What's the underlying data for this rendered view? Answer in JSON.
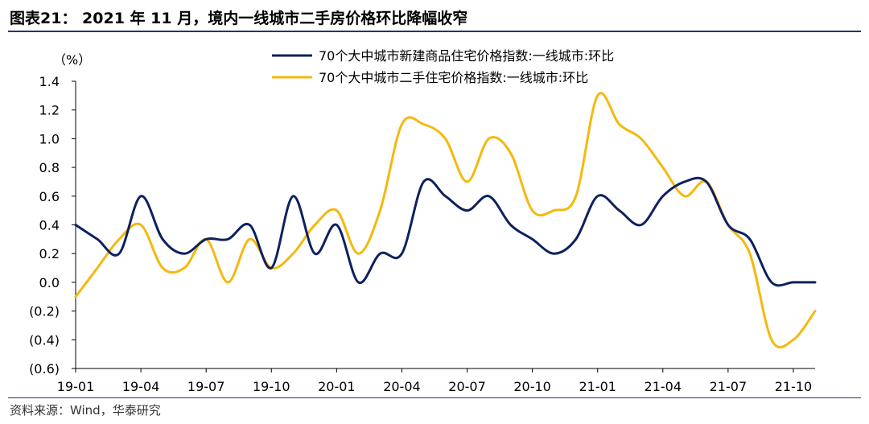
{
  "header": {
    "title": "图表21：  2021 年 11 月，境内一线城市二手房价格环比降幅收窄"
  },
  "footer": {
    "source": "资料来源：Wind，华泰研究"
  },
  "colors": {
    "series_new": "#0d2160",
    "series_second": "#f5b80f",
    "axis": "#000000",
    "rule": "#1a3a6b"
  },
  "chart_data": {
    "type": "line",
    "unit_label": "（%）",
    "ylim": [
      -0.6,
      1.4
    ],
    "yticks": [
      1.4,
      1.2,
      1.0,
      0.8,
      0.6,
      0.4,
      0.2,
      0.0,
      -0.2,
      -0.4,
      -0.6
    ],
    "ytick_labels": [
      "1.4",
      "1.2",
      "1.0",
      "0.8",
      "0.6",
      "0.4",
      "0.2",
      "0.0",
      "(0.2)",
      "(0.4)",
      "(0.6)"
    ],
    "xtick_labels": [
      "19-01",
      "19-04",
      "19-07",
      "19-10",
      "20-01",
      "20-04",
      "20-07",
      "20-10",
      "21-01",
      "21-04",
      "21-07",
      "21-10"
    ],
    "x": [
      "19-01",
      "19-02",
      "19-03",
      "19-04",
      "19-05",
      "19-06",
      "19-07",
      "19-08",
      "19-09",
      "19-10",
      "19-11",
      "19-12",
      "20-01",
      "20-02",
      "20-03",
      "20-04",
      "20-05",
      "20-06",
      "20-07",
      "20-08",
      "20-09",
      "20-10",
      "20-11",
      "20-12",
      "21-01",
      "21-02",
      "21-03",
      "21-04",
      "21-05",
      "21-06",
      "21-07",
      "21-08",
      "21-09",
      "21-10",
      "21-11"
    ],
    "grid": false,
    "legend_position": "top-center",
    "series": [
      {
        "name": "70个大中城市新建商品住宅价格指数:一线城市:环比",
        "values": [
          0.4,
          0.3,
          0.2,
          0.6,
          0.3,
          0.2,
          0.3,
          0.3,
          0.4,
          0.1,
          0.6,
          0.2,
          0.4,
          0.0,
          0.2,
          0.2,
          0.7,
          0.6,
          0.5,
          0.6,
          0.4,
          0.3,
          0.2,
          0.3,
          0.6,
          0.5,
          0.4,
          0.6,
          0.7,
          0.7,
          0.4,
          0.3,
          0.0,
          0.0,
          0.0
        ]
      },
      {
        "name": "70个大中城市二手住宅价格指数:一线城市:环比",
        "values": [
          -0.1,
          0.1,
          0.3,
          0.4,
          0.1,
          0.1,
          0.3,
          0.0,
          0.3,
          0.1,
          0.2,
          0.4,
          0.5,
          0.2,
          0.5,
          1.1,
          1.1,
          1.0,
          0.7,
          1.0,
          0.9,
          0.5,
          0.5,
          0.6,
          1.3,
          1.1,
          1.0,
          0.8,
          0.6,
          0.7,
          0.4,
          0.2,
          -0.4,
          -0.4,
          -0.2
        ]
      }
    ]
  }
}
